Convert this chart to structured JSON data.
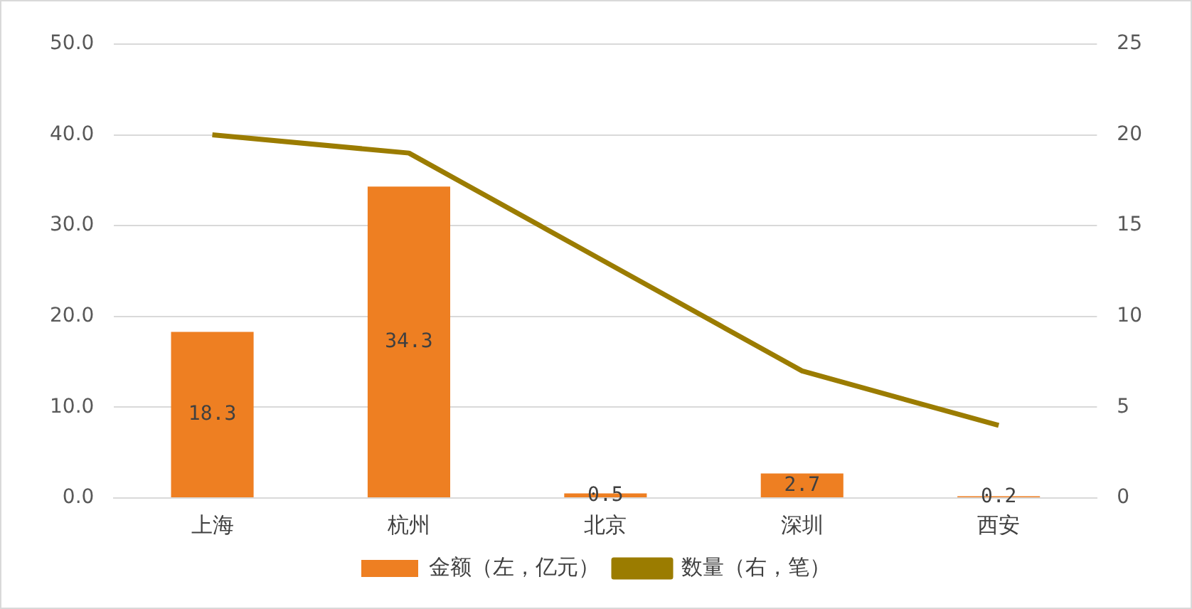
{
  "chart_data": {
    "type": "bar",
    "categories": [
      "上海",
      "杭州",
      "北京",
      "深圳",
      "西安"
    ],
    "series": [
      {
        "name": "金额（左，亿元）",
        "color": "#ee7f22",
        "values": [
          18.3,
          34.3,
          0.5,
          2.7,
          0.2
        ],
        "value_labels": [
          "18.3",
          "34.3",
          "0.5",
          "2.7",
          "0.2"
        ]
      },
      {
        "name": "数量（右，笔）",
        "type": "line",
        "axis": "y2",
        "color": "#9b7c00",
        "values": [
          20,
          19,
          13,
          7,
          4
        ],
        "marker": "none"
      }
    ],
    "ylim": [
      0,
      50
    ],
    "yticks": [
      {
        "value": 0,
        "label": "0.0"
      },
      {
        "value": 10,
        "label": "10.0"
      },
      {
        "value": 20,
        "label": "20.0"
      },
      {
        "value": 30,
        "label": "30.0"
      },
      {
        "value": 40,
        "label": "40.0"
      },
      {
        "value": 50,
        "label": "50.0"
      }
    ],
    "y2lim": [
      0,
      25
    ],
    "y2ticks": [
      0,
      5,
      10,
      15,
      20,
      25
    ],
    "grid": "y",
    "legend": "bottom"
  }
}
